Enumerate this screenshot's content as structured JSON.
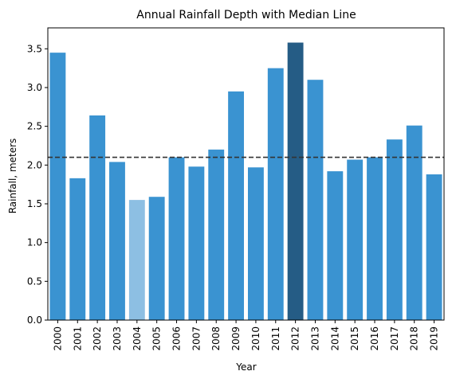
{
  "chart_data": {
    "type": "bar",
    "title": "Annual Rainfall Depth with Median Line",
    "xlabel": "Year",
    "ylabel": "Rainfall, meters",
    "categories": [
      "2000",
      "2001",
      "2002",
      "2003",
      "2004",
      "2005",
      "2006",
      "2007",
      "2008",
      "2009",
      "2010",
      "2011",
      "2012",
      "2013",
      "2014",
      "2015",
      "2016",
      "2017",
      "2018",
      "2019"
    ],
    "values": [
      3.45,
      1.83,
      2.64,
      2.04,
      1.55,
      1.59,
      2.1,
      1.98,
      2.2,
      2.95,
      1.97,
      3.25,
      3.58,
      3.1,
      1.92,
      2.07,
      2.1,
      2.33,
      2.51,
      1.88
    ],
    "ylim": [
      0,
      3.77
    ],
    "yticks": [
      "0.0",
      "0.5",
      "1.0",
      "1.5",
      "2.0",
      "2.5",
      "3.0",
      "3.5"
    ],
    "median": 2.1,
    "grid": false,
    "colors": {
      "default": "#3a93d1",
      "min": "#8dbfe3",
      "max": "#255c85",
      "median_line": "#333333"
    }
  }
}
